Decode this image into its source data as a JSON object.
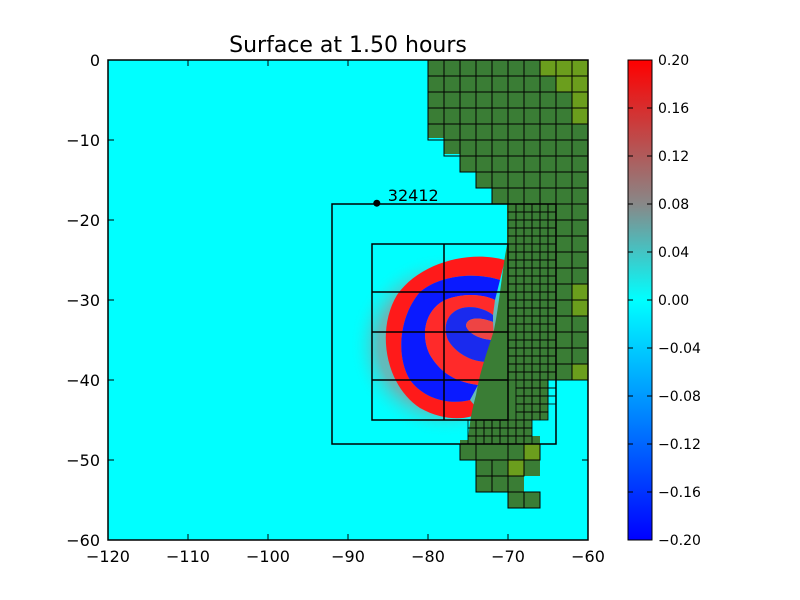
{
  "chart_data": {
    "type": "heatmap",
    "title": "Surface at 1.50 hours",
    "xlabel": "",
    "ylabel": "",
    "xlim": [
      -120,
      -60
    ],
    "ylim": [
      -60,
      0
    ],
    "x_ticks": [
      "−120",
      "−110",
      "−100",
      "−90",
      "−80",
      "−70",
      "−60"
    ],
    "x_tick_values": [
      -120,
      -110,
      -100,
      -90,
      -80,
      -70,
      -60
    ],
    "y_ticks": [
      "0",
      "−10",
      "−20",
      "−30",
      "−40",
      "−50",
      "−60"
    ],
    "y_tick_values": [
      0,
      -10,
      -20,
      -30,
      -40,
      -50,
      -60
    ],
    "colorbar": {
      "min": -0.2,
      "max": 0.2,
      "ticks": [
        "0.20",
        "0.16",
        "0.12",
        "0.08",
        "0.04",
        "0.00",
        "−0.04",
        "−0.08",
        "−0.12",
        "−0.16",
        "−0.20"
      ],
      "tick_values": [
        0.2,
        0.16,
        0.12,
        0.08,
        0.04,
        0.0,
        -0.04,
        -0.08,
        -0.12,
        -0.16,
        -0.2
      ]
    },
    "gauge": {
      "label": "32412",
      "lon": -86.4,
      "lat": -17.9
    },
    "colors": {
      "background_water": "#00ffff",
      "land": "#3a7d35",
      "land_high": "#6b9e1d",
      "positive": "#ff0000",
      "negative": "#0000ff"
    },
    "refinement_regions": [
      {
        "x": [
          -92,
          -64
        ],
        "y": [
          -48,
          -18
        ]
      },
      {
        "x": [
          -87,
          -70
        ],
        "y": [
          -45,
          -23
        ]
      }
    ],
    "wave_center": {
      "lon": -72,
      "lat": -35
    }
  }
}
